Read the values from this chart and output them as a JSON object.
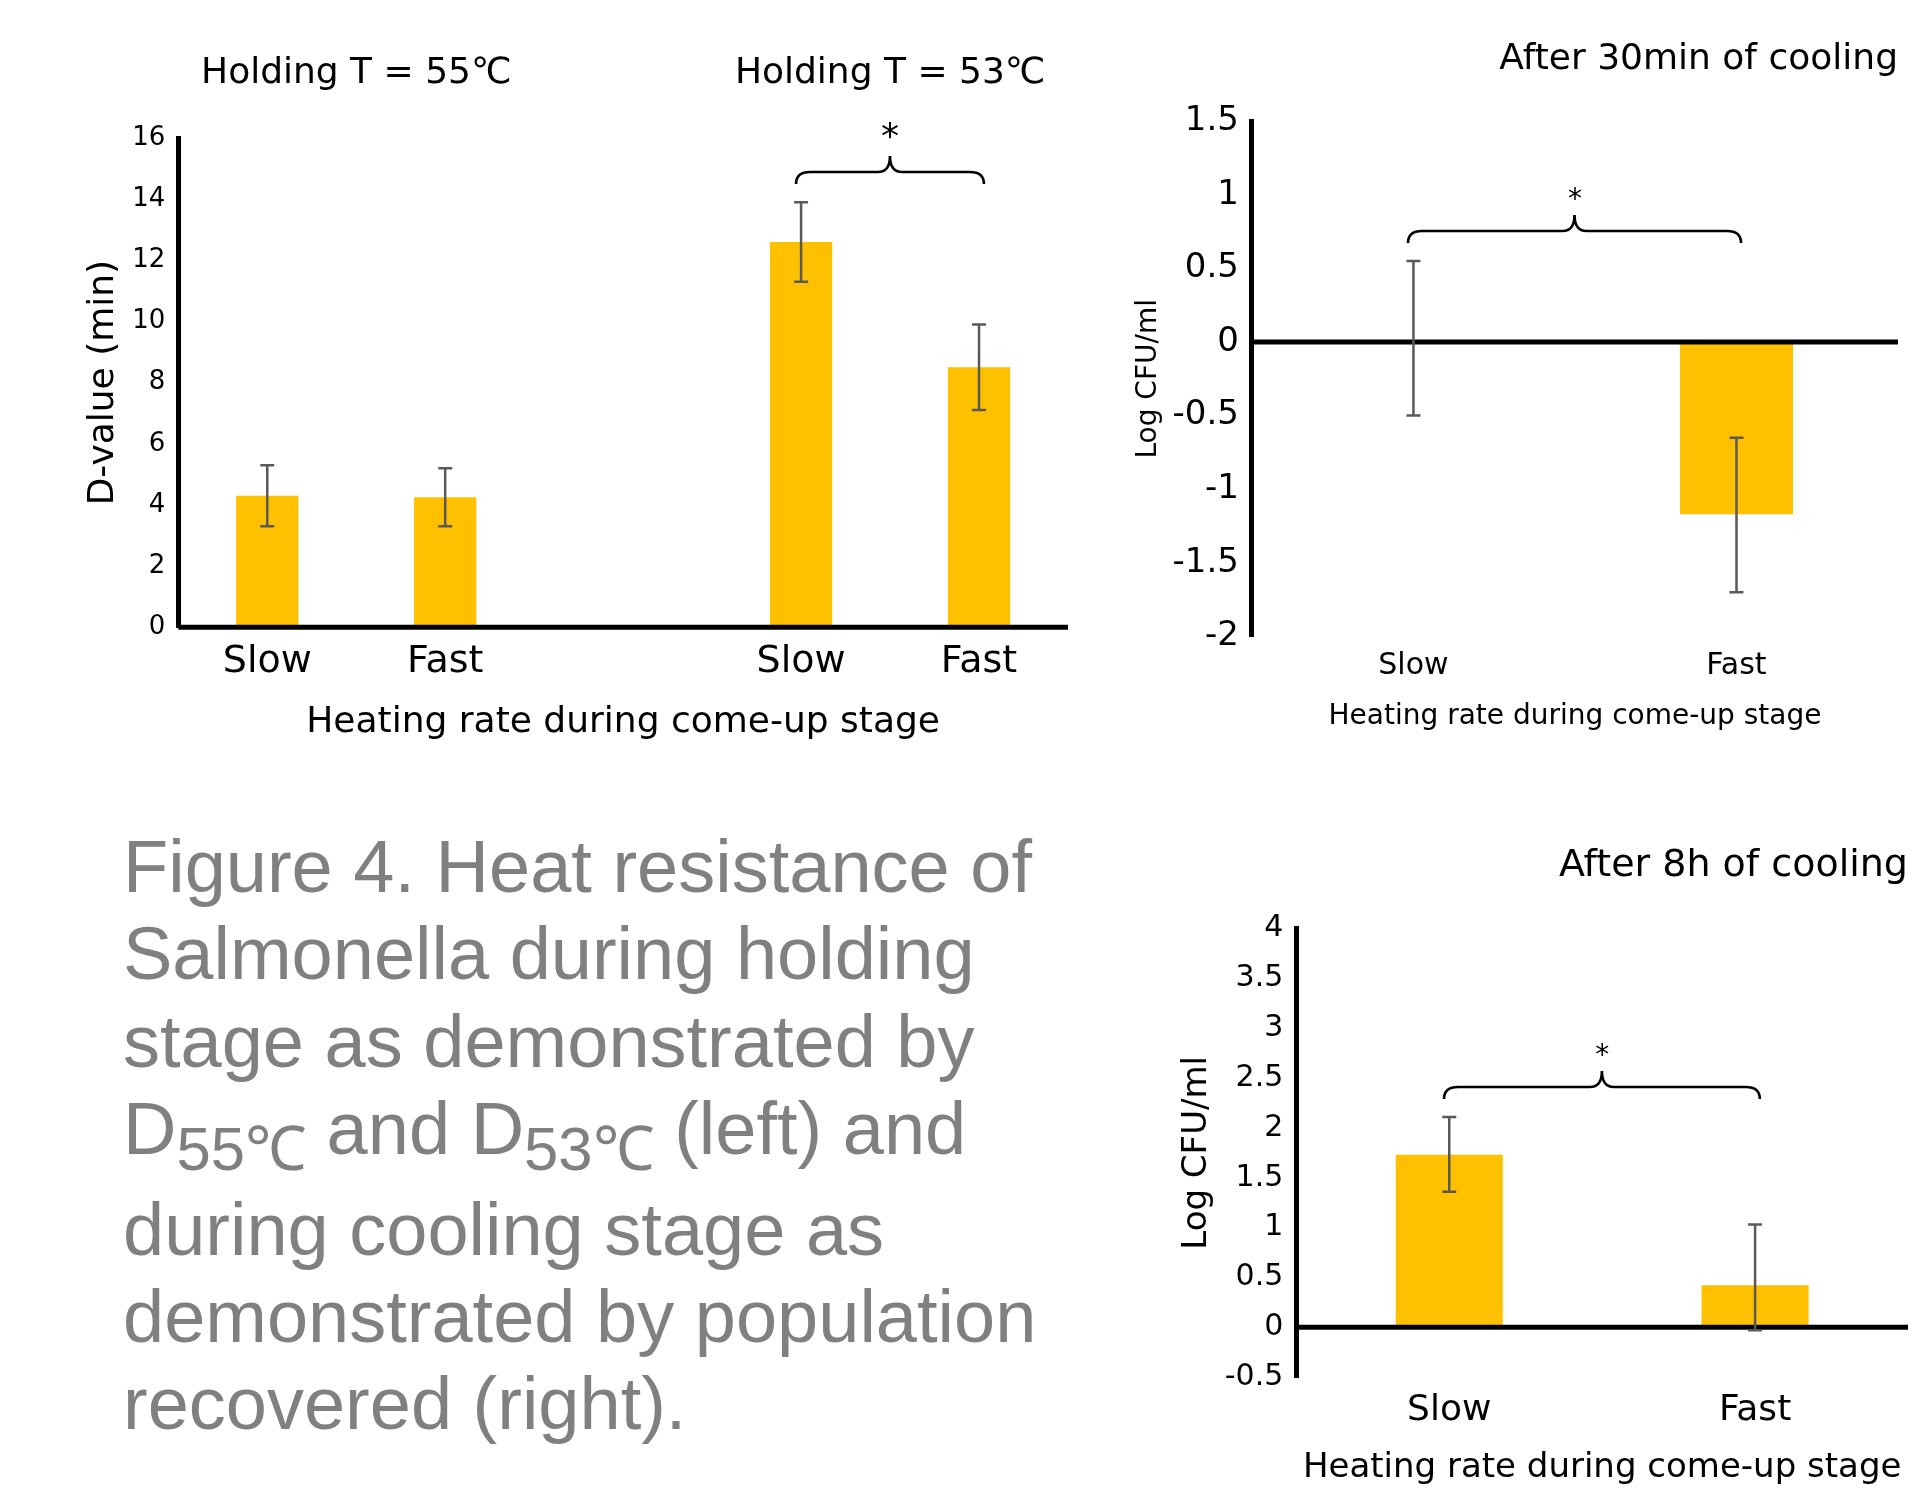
{
  "chart_data": [
    {
      "type": "bar",
      "categories": [
        "Slow",
        "Fast",
        null,
        "Slow",
        "Fast"
      ],
      "values": [
        4.3,
        4.25,
        null,
        12.6,
        8.5
      ],
      "color": "#ffc000",
      "errors": [
        [
          3.3,
          5.3
        ],
        [
          3.3,
          5.2
        ],
        null,
        [
          11.3,
          13.9
        ],
        [
          7.1,
          9.9
        ]
      ],
      "ylim": [
        0,
        16
      ],
      "yticks": [
        0,
        2,
        4,
        6,
        8,
        10,
        12,
        14,
        16
      ],
      "ylabel": "D-value (min)",
      "xlabel": "Heating rate during come-up stage",
      "annotations": [
        "Holding T = 55℃",
        "Holding T = 53℃",
        "*"
      ],
      "grid": false,
      "legend": false
    },
    {
      "type": "bar",
      "title": "After 30min of cooling",
      "categories": [
        "Slow",
        "Fast"
      ],
      "values": [
        0,
        -1.17
      ],
      "color": "#ffc000",
      "errors": [
        [
          -0.5,
          0.55
        ],
        [
          -1.7,
          -0.65
        ]
      ],
      "ylim": [
        -2,
        1.5
      ],
      "yticks": [
        -2,
        -1.5,
        -1,
        -0.5,
        0,
        0.5,
        1,
        1.5
      ],
      "ylabel": "Log CFU/ml",
      "xlabel": "Heating rate during come-up stage",
      "annotations": [
        "*"
      ],
      "ref_lines": [
        {
          "axis": "y",
          "value": 0,
          "color": "#000000"
        }
      ],
      "grid": false,
      "legend": false
    },
    {
      "type": "bar",
      "title": "After 8h of cooling",
      "categories": [
        "Slow",
        "Fast"
      ],
      "values": [
        1.73,
        0.42
      ],
      "color": "#ffc000",
      "errors": [
        [
          1.36,
          2.11
        ],
        [
          -0.03,
          1.03
        ]
      ],
      "ylim": [
        -0.5,
        4
      ],
      "yticks": [
        -0.5,
        0,
        0.5,
        1,
        1.5,
        2,
        2.5,
        3,
        3.5,
        4
      ],
      "ylabel": "Log CFU/ml",
      "xlabel": "Heating rate during come-up stage",
      "annotations": [
        "*"
      ],
      "grid": false,
      "legend": false
    },
    {
      "type": "other",
      "title": "Figure 4. Heat resistance of Salmonella during holding stage as demonstrated by D$_{55℃}$ and D$_{53℃}$ (left) and during cooling stage as demonstrated by population recovered (right)."
    }
  ]
}
